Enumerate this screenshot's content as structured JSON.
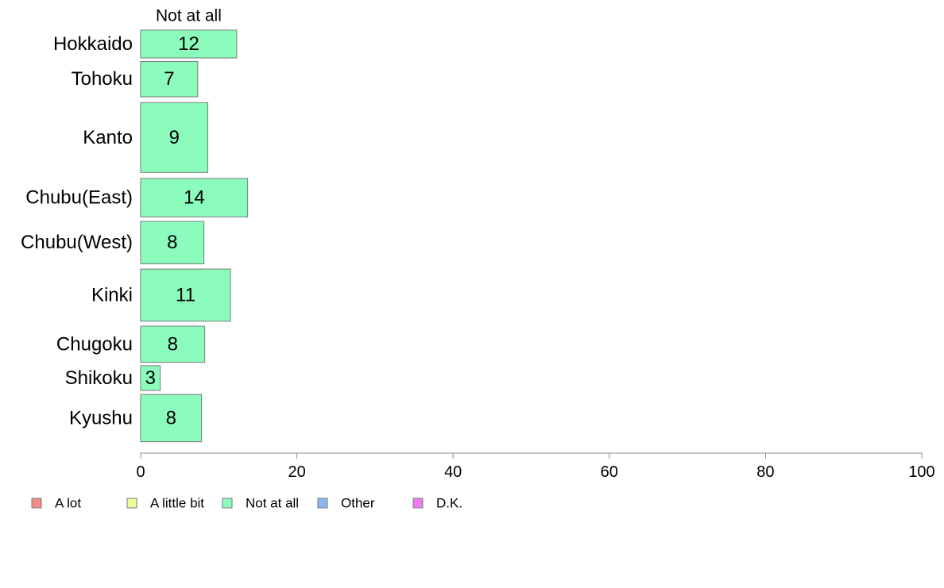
{
  "chart_data": {
    "type": "bar",
    "orientation": "horizontal",
    "stacked": true,
    "categories": [
      "Hokkaido",
      "Tohoku",
      "Kanto",
      "Chubu(East)",
      "Chubu(West)",
      "Kinki",
      "Chugoku",
      "Shikoku",
      "Kyushu"
    ],
    "category_weights": [
      0.63,
      0.8,
      1.58,
      0.87,
      0.96,
      1.18,
      0.82,
      0.56,
      1.07
    ],
    "series": [
      {
        "name": "A lot",
        "color": "#f28b86",
        "values": [
          0,
          0,
          0,
          0,
          0,
          0,
          0,
          0,
          0
        ]
      },
      {
        "name": "A little bit",
        "color": "#eefa98",
        "values": [
          0,
          0,
          0,
          0,
          0,
          0,
          0,
          0,
          0
        ]
      },
      {
        "name": "Not at all",
        "color": "#8cfcbd",
        "values": [
          12.3,
          7.3,
          8.6,
          13.7,
          8.1,
          11.5,
          8.2,
          2.5,
          7.8
        ]
      },
      {
        "name": "Other",
        "color": "#8ab6f2",
        "values": [
          0,
          0,
          0,
          0,
          0,
          0,
          0,
          0,
          0
        ]
      },
      {
        "name": "D.K.",
        "color": "#ee7bf1",
        "values": [
          0,
          0,
          0,
          0,
          0,
          0,
          0,
          0,
          0
        ]
      }
    ],
    "data_labels": [
      "12",
      "7",
      "9",
      "14",
      "8",
      "11",
      "8",
      "3",
      "8"
    ],
    "series_header": "Not at all",
    "xlim": [
      0,
      100
    ],
    "xticks": [
      0,
      20,
      40,
      60,
      80,
      100
    ],
    "xlabel": "",
    "ylabel": "",
    "grid": false,
    "legend_position": "bottom-left",
    "bar_border_color": "#7a7a7a",
    "axis_color": "#8c8c8c"
  }
}
